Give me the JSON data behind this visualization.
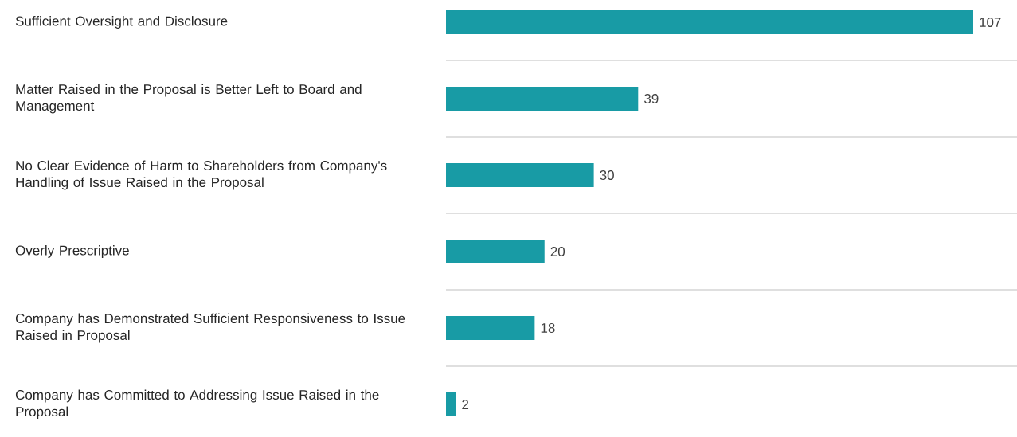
{
  "chart_data": {
    "type": "bar",
    "orientation": "horizontal",
    "categories": [
      "Sufficient Oversight and Disclosure",
      "Matter Raised in the Proposal is Better Left to Board and Management",
      "No Clear Evidence of Harm to Shareholders from Company's Handling of Issue Raised in the Proposal",
      "Overly Prescriptive",
      "Company has Demonstrated Sufficient Responsiveness to Issue Raised in Proposal",
      "Company has Committed to Addressing Issue Raised in the Proposal"
    ],
    "values": [
      107,
      39,
      30,
      20,
      18,
      2
    ],
    "color": "#189ba5",
    "data_labels": true,
    "grid": "y"
  }
}
